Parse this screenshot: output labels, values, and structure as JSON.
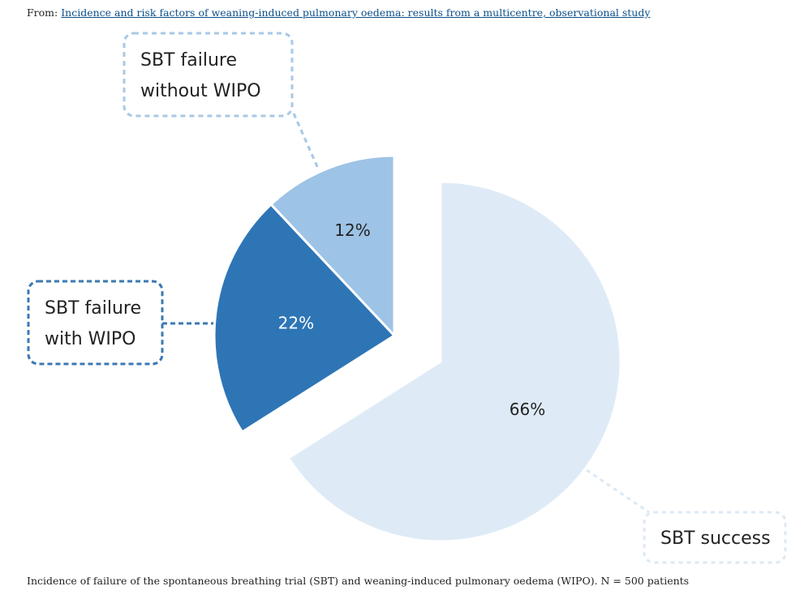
{
  "source": {
    "prefix": "From:",
    "link_text": "Incidence and risk factors of weaning-induced pulmonary oedema: results from a multicentre, observational study"
  },
  "caption": "Incidence of failure of the spontaneous breathing trial (SBT) and weaning-induced pulmonary oedema (WIPO). N = 500 patients",
  "chart_data": {
    "type": "pie",
    "exploded": true,
    "slices": [
      {
        "label": "SBT success",
        "value": 66,
        "display": "66%",
        "color": "#deebf7",
        "label_color": "#222222",
        "callout": [
          "SBT success"
        ],
        "border": "#d0e2f2"
      },
      {
        "label": "SBT failure with WIPO",
        "value": 22,
        "display": "22%",
        "color": "#2e75b6",
        "label_color": "#ffffff",
        "callout": [
          "SBT failure",
          "with WIPO"
        ],
        "border": "#2e6da4"
      },
      {
        "label": "SBT failure without WIPO",
        "value": 12,
        "display": "12%",
        "color": "#9dc3e6",
        "label_color": "#222222",
        "callout": [
          "SBT failure",
          "without WIPO"
        ],
        "border": "#9dc3e6"
      }
    ]
  }
}
